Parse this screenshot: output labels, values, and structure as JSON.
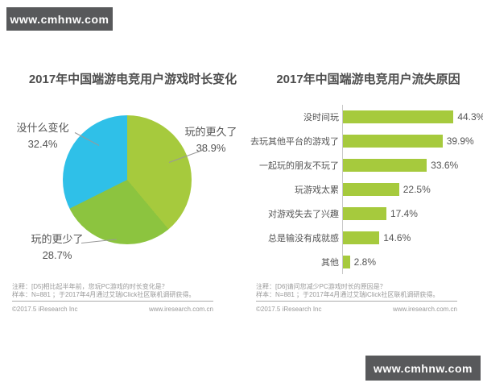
{
  "banner_top": {
    "text": "www.cmhnw.com"
  },
  "banner_bottom": {
    "text": "www.cmhnw.com"
  },
  "colors": {
    "banner_bg": "#58595b",
    "pie_more": "#a6ca3d",
    "pie_less": "#8cc43f",
    "pie_same": "#2fc0e8",
    "bar": "#a6ca3d"
  },
  "left_chart": {
    "title": "2017年中国端游电竞用户游戏时长变化",
    "notes": {
      "line1": "注释：[D5]相比起半年前，您玩PC游戏的时长变化是？",
      "line2": "样本：N=881 ；于2017年4月通过艾瑞iClick社区联机调研获得。",
      "copyright": "©2017.5 iResearch Inc",
      "url": "www.iresearch.com.cn"
    }
  },
  "right_chart": {
    "title": "2017年中国端游电竞用户流失原因",
    "notes": {
      "line1": "注释：[D6]请问您减少PC游戏时长的原因是？",
      "line2": "样本：N=881 ；于2017年4月通过艾瑞iClick社区联机调研获得。",
      "copyright": "©2017.5 iResearch Inc",
      "url": "www.iresearch.com.cn"
    }
  },
  "chart_data": [
    {
      "type": "pie",
      "title": "2017年中国端游电竞用户游戏时长变化",
      "start_angle_deg": 0,
      "direction": "clockwise",
      "slices": [
        {
          "label": "玩的更久了",
          "value": 38.9,
          "display": "38.9%",
          "color": "#a6ca3d"
        },
        {
          "label": "玩的更少了",
          "value": 28.7,
          "display": "28.7%",
          "color": "#8cc43f"
        },
        {
          "label": "没什么变化",
          "value": 32.4,
          "display": "32.4%",
          "color": "#2fc0e8"
        }
      ]
    },
    {
      "type": "bar",
      "orientation": "horizontal",
      "title": "2017年中国端游电竞用户流失原因",
      "categories": [
        "没时间玩",
        "去玩其他平台的游戏了",
        "一起玩的朋友不玩了",
        "玩游戏太累",
        "对游戏失去了兴趣",
        "总是输没有成就感",
        "其他"
      ],
      "values": [
        44.3,
        39.9,
        33.6,
        22.5,
        17.4,
        14.6,
        2.8
      ],
      "value_labels": [
        "44.3%",
        "39.9%",
        "33.6%",
        "22.5%",
        "17.4%",
        "14.6%",
        "2.8%"
      ],
      "bar_color": "#a6ca3d",
      "xlim": [
        0,
        50
      ],
      "grid": false,
      "legend": "none"
    }
  ]
}
